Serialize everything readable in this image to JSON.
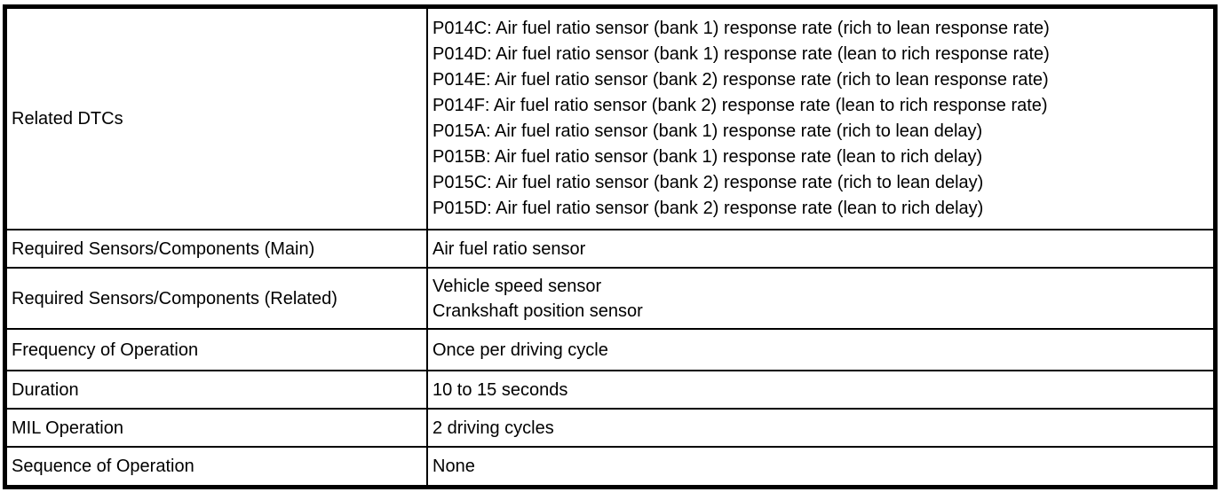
{
  "page": {
    "background_color": "#ffffff",
    "border_color": "#000000",
    "text_color": "#000000"
  },
  "table": {
    "rows": [
      {
        "label": "Related DTCs",
        "values": [
          "P014C: Air fuel ratio sensor (bank 1) response rate (rich to lean response rate)",
          "P014D: Air fuel ratio sensor (bank 1) response rate (lean to rich response rate)",
          "P014E: Air fuel ratio sensor (bank 2) response rate (rich to lean response rate)",
          "P014F: Air fuel ratio sensor (bank 2) response rate (lean to rich response rate)",
          "P015A: Air fuel ratio sensor (bank 1) response rate (rich to lean delay)",
          "P015B: Air fuel ratio sensor (bank 1) response rate (lean to rich delay)",
          "P015C: Air fuel ratio sensor (bank 2) response rate (rich to lean delay)",
          "P015D: Air fuel ratio sensor (bank 2) response rate (lean to rich delay)"
        ]
      },
      {
        "label": "Required Sensors/Components (Main)",
        "values": [
          "Air fuel ratio sensor"
        ]
      },
      {
        "label": "Required Sensors/Components (Related)",
        "values": [
          "Vehicle speed sensor",
          "Crankshaft position sensor"
        ]
      },
      {
        "label": "Frequency of Operation",
        "values": [
          "Once per driving cycle"
        ]
      },
      {
        "label": "Duration",
        "values": [
          "10 to 15 seconds"
        ]
      },
      {
        "label": "MIL Operation",
        "values": [
          "2 driving cycles"
        ]
      },
      {
        "label": "Sequence of Operation",
        "values": [
          "None"
        ]
      }
    ]
  }
}
